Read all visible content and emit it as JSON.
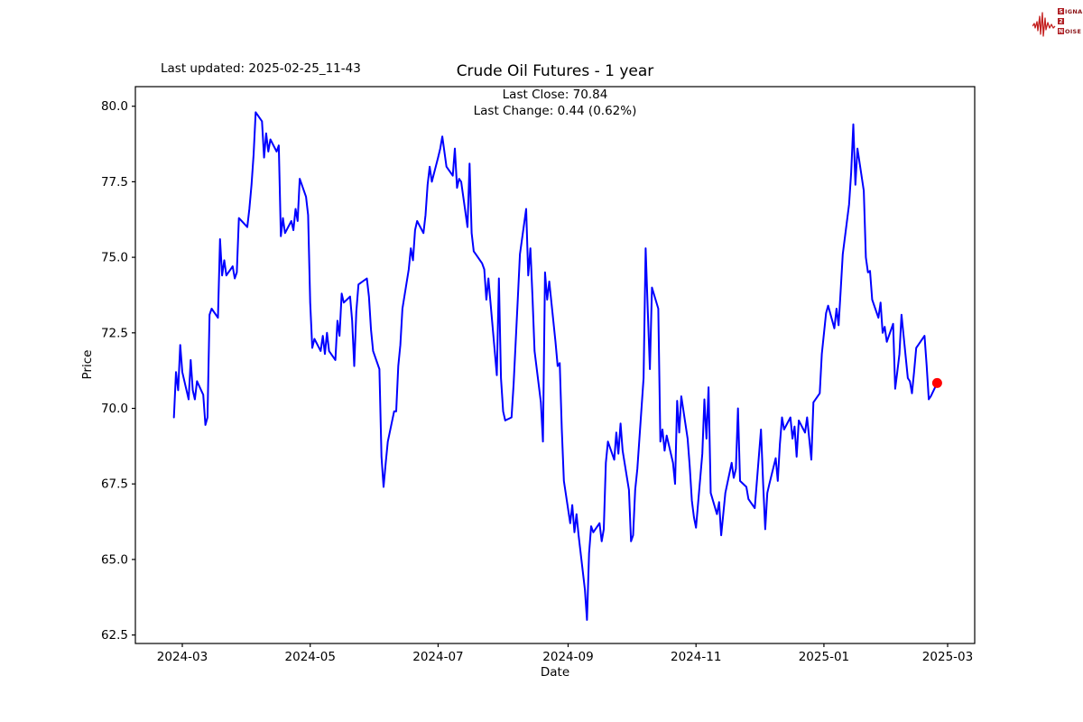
{
  "figure": {
    "title": "Crude Oil Futures - 1 year",
    "last_updated": "Last updated: 2025-02-25_11-43",
    "xlabel": "Date",
    "ylabel": "Price",
    "annotations": {
      "last_close_label": "Last Close: 70.84",
      "last_change_label": "Last Change: 0.44 (0.62%)",
      "last_close": 70.84,
      "last_change": 0.44,
      "last_change_pct": "0.62%"
    }
  },
  "logo": {
    "brand": "Signal 2 Noise",
    "rows": [
      {
        "initial": "S",
        "rest": "IGNAL"
      },
      {
        "initial": "2",
        "rest": ""
      },
      {
        "initial": "N",
        "rest": "OISE"
      }
    ],
    "wave_color": "#c4201f",
    "box_color": "#b01f24"
  },
  "chart_data": {
    "type": "line",
    "title": "Crude Oil Futures - 1 year",
    "xlabel": "Date",
    "ylabel": "Price",
    "line_color": "#0000ff",
    "marker_color": "#ff0000",
    "grid": false,
    "legend": "none",
    "ylim": [
      62.2,
      80.65
    ],
    "y_ticks": [
      "62.5",
      "65.0",
      "67.5",
      "70.0",
      "72.5",
      "75.0",
      "77.5",
      "80.0"
    ],
    "x_ticks": [
      {
        "label": "2024-03",
        "date": "2024-03-01"
      },
      {
        "label": "2024-05",
        "date": "2024-05-01"
      },
      {
        "label": "2024-07",
        "date": "2024-07-01"
      },
      {
        "label": "2024-09",
        "date": "2024-09-01"
      },
      {
        "label": "2024-11",
        "date": "2024-11-01"
      },
      {
        "label": "2025-01",
        "date": "2025-01-01"
      },
      {
        "label": "2025-03",
        "date": "2025-03-01"
      }
    ],
    "marker": {
      "date": "2025-02-24",
      "value": 70.84,
      "color": "#ff0000"
    },
    "series": [
      {
        "name": "Crude Oil Futures",
        "points": [
          [
            "2024-02-26",
            69.7
          ],
          [
            "2024-02-27",
            71.2
          ],
          [
            "2024-02-28",
            70.6
          ],
          [
            "2024-02-29",
            72.1
          ],
          [
            "2024-03-01",
            71.2
          ],
          [
            "2024-03-04",
            70.3
          ],
          [
            "2024-03-05",
            71.6
          ],
          [
            "2024-03-06",
            70.6
          ],
          [
            "2024-03-07",
            70.3
          ],
          [
            "2024-03-08",
            70.9
          ],
          [
            "2024-03-11",
            70.45
          ],
          [
            "2024-03-12",
            69.45
          ],
          [
            "2024-03-13",
            69.7
          ],
          [
            "2024-03-14",
            73.1
          ],
          [
            "2024-03-15",
            73.3
          ],
          [
            "2024-03-18",
            73.0
          ],
          [
            "2024-03-19",
            75.6
          ],
          [
            "2024-03-20",
            74.4
          ],
          [
            "2024-03-21",
            74.9
          ],
          [
            "2024-03-22",
            74.4
          ],
          [
            "2024-03-25",
            74.7
          ],
          [
            "2024-03-26",
            74.3
          ],
          [
            "2024-03-27",
            74.5
          ],
          [
            "2024-03-28",
            76.3
          ],
          [
            "2024-04-01",
            76.0
          ],
          [
            "2024-04-02",
            76.6
          ],
          [
            "2024-04-03",
            77.4
          ],
          [
            "2024-04-04",
            78.4
          ],
          [
            "2024-04-05",
            79.8
          ],
          [
            "2024-04-08",
            79.5
          ],
          [
            "2024-04-09",
            78.3
          ],
          [
            "2024-04-10",
            79.1
          ],
          [
            "2024-04-11",
            78.5
          ],
          [
            "2024-04-12",
            78.9
          ],
          [
            "2024-04-15",
            78.5
          ],
          [
            "2024-04-16",
            78.7
          ],
          [
            "2024-04-17",
            75.7
          ],
          [
            "2024-04-18",
            76.3
          ],
          [
            "2024-04-19",
            75.8
          ],
          [
            "2024-04-22",
            76.2
          ],
          [
            "2024-04-23",
            75.9
          ],
          [
            "2024-04-24",
            76.6
          ],
          [
            "2024-04-25",
            76.2
          ],
          [
            "2024-04-26",
            77.6
          ],
          [
            "2024-04-29",
            77.0
          ],
          [
            "2024-04-30",
            76.4
          ],
          [
            "2024-05-01",
            73.5
          ],
          [
            "2024-05-02",
            72.0
          ],
          [
            "2024-05-03",
            72.3
          ],
          [
            "2024-05-06",
            71.9
          ],
          [
            "2024-05-07",
            72.4
          ],
          [
            "2024-05-08",
            71.8
          ],
          [
            "2024-05-09",
            72.5
          ],
          [
            "2024-05-10",
            71.9
          ],
          [
            "2024-05-13",
            71.6
          ],
          [
            "2024-05-14",
            72.9
          ],
          [
            "2024-05-15",
            72.4
          ],
          [
            "2024-05-16",
            73.8
          ],
          [
            "2024-05-17",
            73.5
          ],
          [
            "2024-05-20",
            73.7
          ],
          [
            "2024-05-21",
            72.9
          ],
          [
            "2024-05-22",
            71.4
          ],
          [
            "2024-05-23",
            73.2
          ],
          [
            "2024-05-24",
            74.1
          ],
          [
            "2024-05-28",
            74.3
          ],
          [
            "2024-05-29",
            73.7
          ],
          [
            "2024-05-30",
            72.6
          ],
          [
            "2024-05-31",
            71.9
          ],
          [
            "2024-06-03",
            71.3
          ],
          [
            "2024-06-04",
            68.4
          ],
          [
            "2024-06-05",
            67.4
          ],
          [
            "2024-06-06",
            68.2
          ],
          [
            "2024-06-07",
            68.9
          ],
          [
            "2024-06-10",
            69.9
          ],
          [
            "2024-06-11",
            69.9
          ],
          [
            "2024-06-12",
            71.4
          ],
          [
            "2024-06-13",
            72.1
          ],
          [
            "2024-06-14",
            73.3
          ],
          [
            "2024-06-17",
            74.6
          ],
          [
            "2024-06-18",
            75.3
          ],
          [
            "2024-06-19",
            74.9
          ],
          [
            "2024-06-20",
            75.9
          ],
          [
            "2024-06-21",
            76.2
          ],
          [
            "2024-06-24",
            75.8
          ],
          [
            "2024-06-25",
            76.4
          ],
          [
            "2024-06-26",
            77.4
          ],
          [
            "2024-06-27",
            78.0
          ],
          [
            "2024-06-28",
            77.5
          ],
          [
            "2024-07-01",
            78.3
          ],
          [
            "2024-07-02",
            78.6
          ],
          [
            "2024-07-03",
            79.0
          ],
          [
            "2024-07-05",
            78.0
          ],
          [
            "2024-07-08",
            77.7
          ],
          [
            "2024-07-09",
            78.6
          ],
          [
            "2024-07-10",
            77.3
          ],
          [
            "2024-07-11",
            77.6
          ],
          [
            "2024-07-12",
            77.5
          ],
          [
            "2024-07-15",
            76.0
          ],
          [
            "2024-07-16",
            78.1
          ],
          [
            "2024-07-17",
            75.8
          ],
          [
            "2024-07-18",
            75.2
          ],
          [
            "2024-07-19",
            75.1
          ],
          [
            "2024-07-22",
            74.8
          ],
          [
            "2024-07-23",
            74.6
          ],
          [
            "2024-07-24",
            73.6
          ],
          [
            "2024-07-25",
            74.3
          ],
          [
            "2024-07-26",
            73.5
          ],
          [
            "2024-07-29",
            71.1
          ],
          [
            "2024-07-30",
            74.3
          ],
          [
            "2024-07-31",
            71.0
          ],
          [
            "2024-08-01",
            69.9
          ],
          [
            "2024-08-02",
            69.6
          ],
          [
            "2024-08-05",
            69.7
          ],
          [
            "2024-08-06",
            70.8
          ],
          [
            "2024-08-07",
            72.2
          ],
          [
            "2024-08-08",
            73.6
          ],
          [
            "2024-08-09",
            75.1
          ],
          [
            "2024-08-12",
            76.6
          ],
          [
            "2024-08-13",
            74.4
          ],
          [
            "2024-08-14",
            75.3
          ],
          [
            "2024-08-15",
            73.7
          ],
          [
            "2024-08-16",
            71.9
          ],
          [
            "2024-08-19",
            70.2
          ],
          [
            "2024-08-20",
            68.9
          ],
          [
            "2024-08-21",
            74.5
          ],
          [
            "2024-08-22",
            73.6
          ],
          [
            "2024-08-23",
            74.2
          ],
          [
            "2024-08-26",
            72.2
          ],
          [
            "2024-08-27",
            71.4
          ],
          [
            "2024-08-28",
            71.5
          ],
          [
            "2024-08-29",
            69.3
          ],
          [
            "2024-08-30",
            67.6
          ],
          [
            "2024-09-02",
            66.2
          ],
          [
            "2024-09-03",
            66.8
          ],
          [
            "2024-09-04",
            65.9
          ],
          [
            "2024-09-05",
            66.5
          ],
          [
            "2024-09-06",
            65.8
          ],
          [
            "2024-09-09",
            64.0
          ],
          [
            "2024-09-10",
            63.0
          ],
          [
            "2024-09-11",
            65.2
          ],
          [
            "2024-09-12",
            66.1
          ],
          [
            "2024-09-13",
            65.9
          ],
          [
            "2024-09-16",
            66.2
          ],
          [
            "2024-09-17",
            65.6
          ],
          [
            "2024-09-18",
            66.0
          ],
          [
            "2024-09-19",
            68.2
          ],
          [
            "2024-09-20",
            68.9
          ],
          [
            "2024-09-23",
            68.3
          ],
          [
            "2024-09-24",
            69.2
          ],
          [
            "2024-09-25",
            68.5
          ],
          [
            "2024-09-26",
            69.5
          ],
          [
            "2024-09-27",
            68.6
          ],
          [
            "2024-09-30",
            67.3
          ],
          [
            "2024-10-01",
            65.6
          ],
          [
            "2024-10-02",
            65.8
          ],
          [
            "2024-10-03",
            67.3
          ],
          [
            "2024-10-04",
            68.0
          ],
          [
            "2024-10-07",
            71.0
          ],
          [
            "2024-10-08",
            75.3
          ],
          [
            "2024-10-09",
            73.2
          ],
          [
            "2024-10-10",
            71.3
          ],
          [
            "2024-10-11",
            74.0
          ],
          [
            "2024-10-14",
            73.3
          ],
          [
            "2024-10-15",
            68.9
          ],
          [
            "2024-10-16",
            69.3
          ],
          [
            "2024-10-17",
            68.6
          ],
          [
            "2024-10-18",
            69.1
          ],
          [
            "2024-10-21",
            68.2
          ],
          [
            "2024-10-22",
            67.5
          ],
          [
            "2024-10-23",
            70.25
          ],
          [
            "2024-10-24",
            69.2
          ],
          [
            "2024-10-25",
            70.4
          ],
          [
            "2024-10-28",
            69.0
          ],
          [
            "2024-10-29",
            68.1
          ],
          [
            "2024-10-30",
            66.95
          ],
          [
            "2024-10-31",
            66.4
          ],
          [
            "2024-11-01",
            66.05
          ],
          [
            "2024-11-04",
            68.5
          ],
          [
            "2024-11-05",
            70.3
          ],
          [
            "2024-11-06",
            69.0
          ],
          [
            "2024-11-07",
            70.7
          ],
          [
            "2024-11-08",
            67.2
          ],
          [
            "2024-11-11",
            66.5
          ],
          [
            "2024-11-12",
            66.9
          ],
          [
            "2024-11-13",
            65.8
          ],
          [
            "2024-11-14",
            66.5
          ],
          [
            "2024-11-15",
            67.2
          ],
          [
            "2024-11-18",
            68.2
          ],
          [
            "2024-11-19",
            67.7
          ],
          [
            "2024-11-20",
            68.0
          ],
          [
            "2024-11-21",
            70.0
          ],
          [
            "2024-11-22",
            67.6
          ],
          [
            "2024-11-25",
            67.4
          ],
          [
            "2024-11-26",
            67.0
          ],
          [
            "2024-11-27",
            66.9
          ],
          [
            "2024-11-29",
            66.7
          ],
          [
            "2024-12-02",
            69.3
          ],
          [
            "2024-12-03",
            67.5
          ],
          [
            "2024-12-04",
            66.0
          ],
          [
            "2024-12-05",
            67.2
          ],
          [
            "2024-12-06",
            67.5
          ],
          [
            "2024-12-09",
            68.35
          ],
          [
            "2024-12-10",
            67.6
          ],
          [
            "2024-12-11",
            68.8
          ],
          [
            "2024-12-12",
            69.7
          ],
          [
            "2024-12-13",
            69.3
          ],
          [
            "2024-12-16",
            69.7
          ],
          [
            "2024-12-17",
            69.0
          ],
          [
            "2024-12-18",
            69.4
          ],
          [
            "2024-12-19",
            68.4
          ],
          [
            "2024-12-20",
            69.6
          ],
          [
            "2024-12-23",
            69.2
          ],
          [
            "2024-12-24",
            69.7
          ],
          [
            "2024-12-26",
            68.3
          ],
          [
            "2024-12-27",
            70.2
          ],
          [
            "2024-12-30",
            70.5
          ],
          [
            "2024-12-31",
            71.8
          ],
          [
            "2025-01-02",
            73.15
          ],
          [
            "2025-01-03",
            73.4
          ],
          [
            "2025-01-06",
            72.65
          ],
          [
            "2025-01-07",
            73.3
          ],
          [
            "2025-01-08",
            72.75
          ],
          [
            "2025-01-09",
            73.9
          ],
          [
            "2025-01-10",
            75.1
          ],
          [
            "2025-01-13",
            76.75
          ],
          [
            "2025-01-14",
            77.8
          ],
          [
            "2025-01-15",
            79.4
          ],
          [
            "2025-01-16",
            77.4
          ],
          [
            "2025-01-17",
            78.6
          ],
          [
            "2025-01-20",
            77.2
          ],
          [
            "2025-01-21",
            75.0
          ],
          [
            "2025-01-22",
            74.5
          ],
          [
            "2025-01-23",
            74.55
          ],
          [
            "2025-01-24",
            73.6
          ],
          [
            "2025-01-27",
            73.0
          ],
          [
            "2025-01-28",
            73.5
          ],
          [
            "2025-01-29",
            72.5
          ],
          [
            "2025-01-30",
            72.7
          ],
          [
            "2025-01-31",
            72.2
          ],
          [
            "2025-02-03",
            72.8
          ],
          [
            "2025-02-04",
            70.65
          ],
          [
            "2025-02-05",
            71.2
          ],
          [
            "2025-02-06",
            71.8
          ],
          [
            "2025-02-07",
            73.1
          ],
          [
            "2025-02-10",
            71.0
          ],
          [
            "2025-02-11",
            70.9
          ],
          [
            "2025-02-12",
            70.5
          ],
          [
            "2025-02-13",
            71.2
          ],
          [
            "2025-02-14",
            72.0
          ],
          [
            "2025-02-18",
            72.4
          ],
          [
            "2025-02-19",
            71.4
          ],
          [
            "2025-02-20",
            70.3
          ],
          [
            "2025-02-21",
            70.4
          ],
          [
            "2025-02-24",
            70.84
          ]
        ]
      }
    ]
  }
}
